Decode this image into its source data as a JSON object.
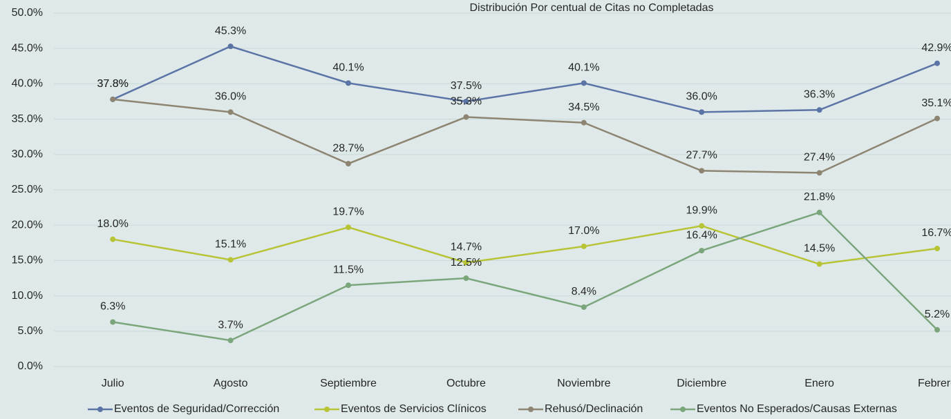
{
  "chart_data": {
    "type": "line",
    "title": "Distribución Por centual de Citas no Completadas",
    "categories": [
      "Julio",
      "Agosto",
      "Septiembre",
      "Octubre",
      "Noviembre",
      "Diciembre",
      "Enero",
      "Febrero"
    ],
    "series": [
      {
        "name": "Eventos de Seguridad/Corrección",
        "color": "#5b74a6",
        "values": [
          37.8,
          45.3,
          40.1,
          37.5,
          40.1,
          36.0,
          36.3,
          42.9
        ],
        "value_labels": [
          "37.8%",
          "45.3%",
          "40.1%",
          "37.5%",
          "40.1%",
          "36.0%",
          "36.3%",
          "42.9%"
        ]
      },
      {
        "name": "Eventos de Servicios Clínicos",
        "color": "#b7c436",
        "values": [
          18.0,
          15.1,
          19.7,
          14.7,
          17.0,
          19.9,
          14.5,
          16.7
        ],
        "value_labels": [
          "18.0%",
          "15.1%",
          "19.7%",
          "14.7%",
          "17.0%",
          "19.9%",
          "14.5%",
          "16.7%"
        ]
      },
      {
        "name": "Rehusó/Declinación",
        "color": "#8d8571",
        "values": [
          37.8,
          36.0,
          28.7,
          35.3,
          34.5,
          27.7,
          27.4,
          35.1
        ],
        "value_labels": [
          "37.8%",
          "36.0%",
          "28.7%",
          "35.3%",
          "34.5%",
          "27.7%",
          "27.4%",
          "35.1%"
        ]
      },
      {
        "name": "Eventos No Esperados/Causas Externas",
        "color": "#7ba67b",
        "values": [
          6.3,
          3.7,
          11.5,
          12.5,
          8.4,
          16.4,
          21.8,
          5.2
        ],
        "value_labels": [
          "6.3%",
          "3.7%",
          "11.5%",
          "12.5%",
          "8.4%",
          "16.4%",
          "21.8%",
          "5.2%"
        ]
      }
    ],
    "ylim": [
      0,
      50
    ],
    "yticks": [
      {
        "value": 0,
        "label": "0.0%"
      },
      {
        "value": 5,
        "label": "5.0%"
      },
      {
        "value": 10,
        "label": "10.0%"
      },
      {
        "value": 15,
        "label": "15.0%"
      },
      {
        "value": 20,
        "label": "20.0%"
      },
      {
        "value": 25,
        "label": "25.0%"
      },
      {
        "value": 30,
        "label": "30.0%"
      },
      {
        "value": 35,
        "label": "35.0%"
      },
      {
        "value": 40,
        "label": "40.0%"
      },
      {
        "value": 45,
        "label": "45.0%"
      },
      {
        "value": 50,
        "label": "50.0%"
      }
    ],
    "grid": true,
    "legend": "bottom"
  }
}
